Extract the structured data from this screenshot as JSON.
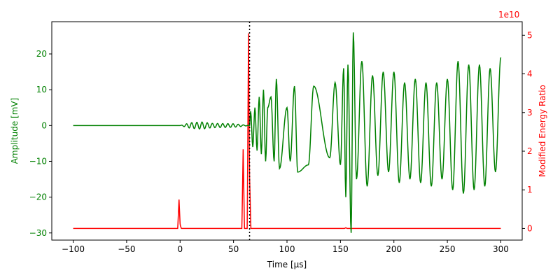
{
  "chart_data": {
    "type": "line",
    "xlabel": "Time [µs]",
    "ylabel_left": "Amplitude [mV]",
    "ylabel_right": "Modified Energy Ratio",
    "right_axis_offset_text": "1e10",
    "xlim": [
      -120,
      320
    ],
    "ylim_left": [
      -32,
      29
    ],
    "ylim_right": [
      -0.3,
      5.35
    ],
    "x_ticks": [
      -100,
      -50,
      0,
      50,
      100,
      150,
      200,
      250,
      300
    ],
    "y_ticks_left": [
      -30,
      -20,
      -10,
      0,
      10,
      20
    ],
    "y_ticks_right": [
      0,
      1,
      2,
      3,
      4,
      5
    ],
    "vline": {
      "x": 65,
      "style": "dotted",
      "color": "#000000"
    },
    "grid": false,
    "series": [
      {
        "axis": "left",
        "color": "#008000",
        "generator": "waveform",
        "x_range": [
          -100,
          300
        ],
        "quiet_until": 0,
        "onset": 65,
        "key_points": [
          [
            -100,
            0
          ],
          [
            0,
            0
          ],
          [
            10,
            0.8
          ],
          [
            20,
            1
          ],
          [
            30,
            0.6
          ],
          [
            50,
            0.5
          ],
          [
            65,
            0
          ],
          [
            66,
            4
          ],
          [
            68,
            -6
          ],
          [
            70,
            5
          ],
          [
            72,
            -7
          ],
          [
            74,
            8
          ],
          [
            76,
            -8
          ],
          [
            78,
            10
          ],
          [
            80,
            -10
          ],
          [
            82,
            5
          ],
          [
            85,
            8
          ],
          [
            88,
            -10
          ],
          [
            90,
            13
          ],
          [
            93,
            -12
          ],
          [
            100,
            5
          ],
          [
            103,
            -10
          ],
          [
            107,
            11
          ],
          [
            110,
            -13
          ],
          [
            120,
            -11
          ],
          [
            125,
            11
          ],
          [
            140,
            -9
          ],
          [
            145,
            12
          ],
          [
            150,
            -11
          ],
          [
            153,
            16
          ],
          [
            155,
            -20
          ],
          [
            157,
            17
          ],
          [
            160,
            -30
          ],
          [
            162,
            26
          ],
          [
            165,
            -15
          ],
          [
            170,
            18
          ],
          [
            175,
            -17
          ],
          [
            180,
            14
          ],
          [
            185,
            -14
          ],
          [
            190,
            15
          ],
          [
            195,
            -13
          ],
          [
            200,
            15
          ],
          [
            205,
            -16
          ],
          [
            210,
            12
          ],
          [
            215,
            -15
          ],
          [
            220,
            13
          ],
          [
            225,
            -16
          ],
          [
            230,
            12
          ],
          [
            235,
            -17
          ],
          [
            240,
            12
          ],
          [
            245,
            -15
          ],
          [
            250,
            13
          ],
          [
            255,
            -18
          ],
          [
            260,
            18
          ],
          [
            265,
            -19
          ],
          [
            270,
            17
          ],
          [
            275,
            -18
          ],
          [
            280,
            17
          ],
          [
            285,
            -17
          ],
          [
            290,
            16
          ],
          [
            295,
            -13
          ],
          [
            300,
            19
          ]
        ]
      },
      {
        "axis": "right",
        "color": "#ff0000",
        "generator": "spikes",
        "x_range": [
          -100,
          300
        ],
        "baseline": 0,
        "key_points": [
          [
            -1,
            0.75
          ],
          [
            0,
            0.1
          ],
          [
            59,
            2.05
          ],
          [
            64,
            5.05
          ],
          [
            65,
            1.35
          ],
          [
            155,
            0.02
          ]
        ]
      }
    ]
  }
}
